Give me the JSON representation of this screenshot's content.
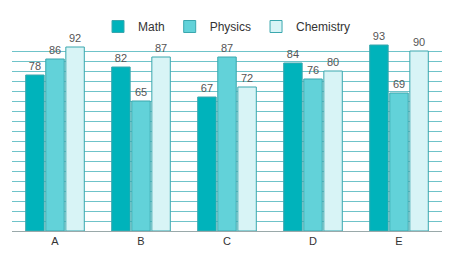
{
  "chart_data": {
    "type": "bar",
    "categories": [
      "A",
      "B",
      "C",
      "D",
      "E"
    ],
    "series": [
      {
        "name": "Math",
        "color": "#00b3bb",
        "values": [
          78,
          82,
          67,
          84,
          93
        ]
      },
      {
        "name": "Physics",
        "color": "#62d2d9",
        "values": [
          86,
          65,
          87,
          76,
          69
        ]
      },
      {
        "name": "Chemistry",
        "color": "#d8f4f6",
        "values": [
          92,
          87,
          72,
          80,
          90
        ]
      }
    ],
    "ylim": [
      0,
      95
    ],
    "yticks": [
      0,
      5,
      10,
      15,
      20,
      25,
      30,
      35,
      40,
      45,
      50,
      55,
      60,
      65,
      70,
      75,
      80,
      85,
      90,
      95
    ],
    "grid": true,
    "legend": "top",
    "data_labels": true,
    "tick_labels": "x"
  }
}
